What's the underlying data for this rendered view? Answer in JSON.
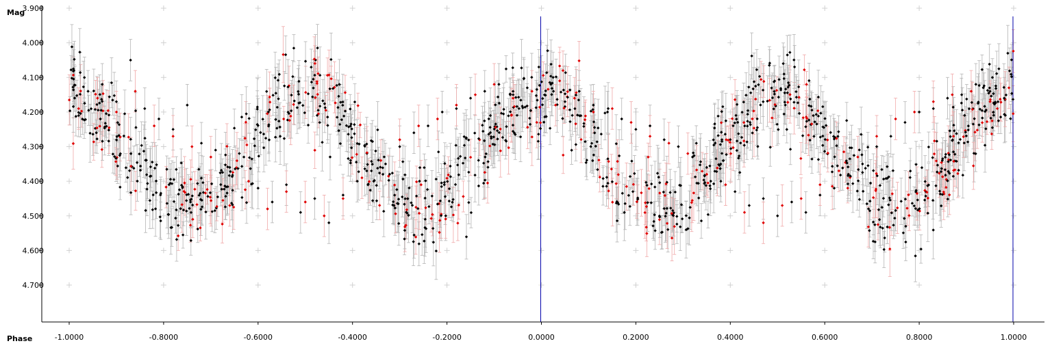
{
  "chart_data": {
    "type": "scatter",
    "title": "",
    "xlabel": "Phase",
    "ylabel": "Mag",
    "xlim": [
      -1.0,
      1.0
    ],
    "ylim": [
      3.9,
      4.8
    ],
    "y_inverted": true,
    "grid": "crosshair markers",
    "x_ticks": [
      "-1.0000",
      "-0.8000",
      "-0.6000",
      "-0.4000",
      "-0.2000",
      "0.0000",
      "0.2000",
      "0.4000",
      "0.6000",
      "0.8000",
      "1.0000"
    ],
    "x_tick_values": [
      -1.0,
      -0.8,
      -0.6,
      -0.4,
      -0.2,
      0.0,
      0.2,
      0.4,
      0.6,
      0.8,
      1.0
    ],
    "y_ticks": [
      "3.900",
      "4.000",
      "4.100",
      "4.200",
      "4.300",
      "4.400",
      "4.500",
      "4.600",
      "4.700"
    ],
    "y_tick_values": [
      3.9,
      4.0,
      4.1,
      4.2,
      4.3,
      4.4,
      4.5,
      4.6,
      4.7
    ],
    "phase_markers": [
      0.0,
      1.0
    ],
    "colors": {
      "series_black": "#000000",
      "series_red": "#e00000",
      "errorbar_black": "#b4b4b4",
      "errorbar_red": "#f0a8a8",
      "marker_line": "#0000aa",
      "grid_cross": "#d0d0d0"
    },
    "light_curve_model": {
      "period_phase": 1.0,
      "max_mag": 4.15,
      "min_mag": 4.48,
      "min_phase": 0.5,
      "scatter": 0.06,
      "errorbar_halfwidth": 0.06
    },
    "series": [
      {
        "color": "black",
        "points": [
          [
            -0.99,
            4.08
          ],
          [
            -0.96,
            4.14
          ],
          [
            -0.93,
            4.12
          ],
          [
            -0.9,
            4.17
          ],
          [
            -0.87,
            4.05
          ],
          [
            -0.84,
            4.19
          ],
          [
            -0.81,
            4.22
          ],
          [
            -0.78,
            4.25
          ],
          [
            -0.75,
            4.18
          ],
          [
            -0.72,
            4.29
          ],
          [
            -0.69,
            4.31
          ],
          [
            -0.66,
            4.36
          ],
          [
            -0.63,
            4.33
          ],
          [
            -0.6,
            4.42
          ],
          [
            -0.57,
            4.46
          ],
          [
            -0.54,
            4.41
          ],
          [
            -0.51,
            4.49
          ],
          [
            -0.48,
            4.45
          ],
          [
            -0.45,
            4.52
          ],
          [
            -0.42,
            4.44
          ],
          [
            -0.39,
            4.4
          ],
          [
            -0.36,
            4.37
          ],
          [
            -0.33,
            4.35
          ],
          [
            -0.3,
            4.3
          ],
          [
            -0.27,
            4.26
          ],
          [
            -0.24,
            4.24
          ],
          [
            -0.21,
            4.2
          ],
          [
            -0.18,
            4.19
          ],
          [
            -0.15,
            4.16
          ],
          [
            -0.12,
            4.14
          ],
          [
            -0.09,
            4.12
          ],
          [
            -0.06,
            4.15
          ],
          [
            -0.03,
            4.13
          ],
          [
            0.02,
            4.12
          ],
          [
            0.05,
            4.17
          ],
          [
            0.08,
            4.14
          ],
          [
            0.11,
            4.18
          ],
          [
            0.14,
            4.2
          ],
          [
            0.17,
            4.22
          ],
          [
            0.2,
            4.25
          ],
          [
            0.23,
            4.24
          ],
          [
            0.26,
            4.28
          ],
          [
            0.29,
            4.3
          ],
          [
            0.32,
            4.33
          ],
          [
            0.35,
            4.36
          ],
          [
            0.38,
            4.4
          ],
          [
            0.41,
            4.43
          ],
          [
            0.44,
            4.47
          ],
          [
            0.47,
            4.45
          ],
          [
            0.5,
            4.5
          ],
          [
            0.53,
            4.46
          ],
          [
            0.56,
            4.49
          ],
          [
            0.59,
            4.44
          ],
          [
            0.62,
            4.42
          ],
          [
            0.65,
            4.38
          ],
          [
            0.68,
            4.35
          ],
          [
            0.71,
            4.3
          ],
          [
            0.74,
            4.27
          ],
          [
            0.77,
            4.23
          ],
          [
            0.8,
            4.2
          ],
          [
            0.83,
            4.19
          ],
          [
            0.86,
            4.16
          ],
          [
            0.89,
            4.15
          ],
          [
            0.92,
            4.12
          ],
          [
            0.95,
            4.14
          ],
          [
            0.98,
            4.16
          ]
        ]
      },
      {
        "color": "red",
        "points": [
          [
            -0.98,
            4.19
          ],
          [
            -0.94,
            4.16
          ],
          [
            -0.9,
            4.2
          ],
          [
            -0.86,
            4.14
          ],
          [
            -0.82,
            4.24
          ],
          [
            -0.78,
            4.27
          ],
          [
            -0.74,
            4.3
          ],
          [
            -0.7,
            4.33
          ],
          [
            -0.66,
            4.47
          ],
          [
            -0.62,
            4.4
          ],
          [
            -0.58,
            4.48
          ],
          [
            -0.54,
            4.43
          ],
          [
            -0.5,
            4.46
          ],
          [
            -0.46,
            4.5
          ],
          [
            -0.42,
            4.45
          ],
          [
            -0.38,
            4.39
          ],
          [
            -0.34,
            4.34
          ],
          [
            -0.3,
            4.28
          ],
          [
            -0.26,
            4.24
          ],
          [
            -0.22,
            4.22
          ],
          [
            -0.18,
            4.18
          ],
          [
            -0.14,
            4.15
          ],
          [
            -0.1,
            4.12
          ],
          [
            -0.06,
            4.16
          ],
          [
            -0.02,
            4.14
          ],
          [
            0.03,
            4.18
          ],
          [
            0.07,
            4.16
          ],
          [
            0.11,
            4.2
          ],
          [
            0.15,
            4.19
          ],
          [
            0.19,
            4.23
          ],
          [
            0.23,
            4.27
          ],
          [
            0.27,
            4.29
          ],
          [
            0.31,
            4.32
          ],
          [
            0.35,
            4.38
          ],
          [
            0.39,
            4.41
          ],
          [
            0.43,
            4.49
          ],
          [
            0.47,
            4.52
          ],
          [
            0.51,
            4.47
          ],
          [
            0.55,
            4.45
          ],
          [
            0.59,
            4.41
          ],
          [
            0.63,
            4.37
          ],
          [
            0.67,
            4.33
          ],
          [
            0.71,
            4.27
          ],
          [
            0.75,
            4.22
          ],
          [
            0.79,
            4.2
          ],
          [
            0.83,
            4.17
          ],
          [
            0.87,
            4.15
          ],
          [
            0.91,
            4.14
          ],
          [
            0.95,
            4.17
          ],
          [
            0.99,
            4.13
          ]
        ]
      }
    ]
  }
}
